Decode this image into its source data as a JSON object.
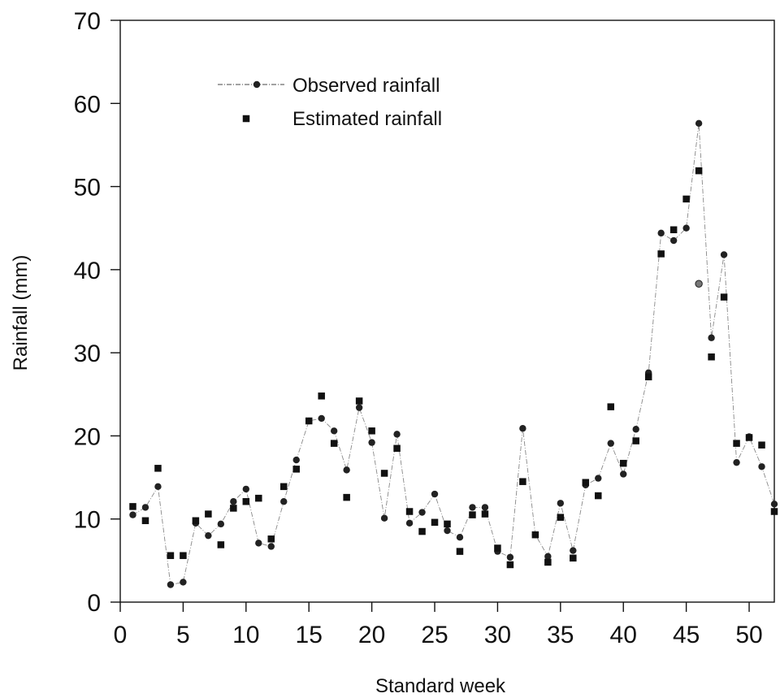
{
  "chart_data": {
    "type": "line",
    "xlabel": "Standard week",
    "ylabel": "Rainfall (mm)",
    "xlim": [
      0,
      52
    ],
    "ylim": [
      0,
      70
    ],
    "xticks": [
      0,
      5,
      10,
      15,
      20,
      25,
      30,
      35,
      40,
      45,
      50
    ],
    "yticks": [
      0,
      10,
      20,
      30,
      40,
      50,
      60,
      70
    ],
    "grid": false,
    "legend_position": "top-left",
    "colors": {
      "observed": "#222222",
      "estimated": "#111111",
      "axis": "#111111"
    },
    "x": [
      1,
      2,
      3,
      4,
      5,
      6,
      7,
      8,
      9,
      10,
      11,
      12,
      13,
      14,
      15,
      16,
      17,
      18,
      19,
      20,
      21,
      22,
      23,
      24,
      25,
      26,
      27,
      28,
      29,
      30,
      31,
      32,
      33,
      34,
      35,
      36,
      37,
      38,
      39,
      40,
      41,
      42,
      43,
      44,
      45,
      46,
      47,
      48,
      49,
      50,
      51,
      52
    ],
    "series": [
      {
        "name": "Observed rainfall",
        "marker": "circle",
        "line": "dash-dot",
        "values": [
          10.5,
          11.4,
          13.9,
          2.1,
          2.4,
          9.5,
          8.0,
          9.4,
          12.1,
          13.6,
          7.1,
          6.7,
          12.1,
          17.1,
          21.8,
          22.1,
          20.6,
          15.9,
          23.4,
          19.2,
          10.1,
          20.2,
          9.5,
          10.8,
          13.0,
          8.6,
          7.8,
          11.4,
          11.4,
          6.1,
          5.4,
          20.9,
          8.1,
          5.5,
          11.9,
          6.2,
          14.1,
          14.9,
          19.1,
          15.4,
          20.8,
          27.6,
          44.4,
          43.5,
          45.0,
          57.6,
          31.8,
          41.8,
          16.8,
          19.9,
          16.3,
          11.8
        ]
      },
      {
        "name": "Estimated rainfall",
        "marker": "square",
        "line": "none",
        "values": [
          11.5,
          9.8,
          16.1,
          5.6,
          5.6,
          9.8,
          10.6,
          6.9,
          11.3,
          12.1,
          12.5,
          7.6,
          13.9,
          16.0,
          21.8,
          24.8,
          19.1,
          12.6,
          24.2,
          20.6,
          15.5,
          18.5,
          10.9,
          8.5,
          9.6,
          9.4,
          6.1,
          10.5,
          10.6,
          6.5,
          4.5,
          14.5,
          8.1,
          4.8,
          10.2,
          5.3,
          14.4,
          12.8,
          23.5,
          16.7,
          19.4,
          27.1,
          41.9,
          44.8,
          48.5,
          51.9,
          29.5,
          36.7,
          19.1,
          19.8,
          18.9,
          10.9
        ]
      }
    ],
    "extra_points": [
      {
        "series": "Observed rainfall",
        "x": 46,
        "y": 38.3
      }
    ]
  }
}
